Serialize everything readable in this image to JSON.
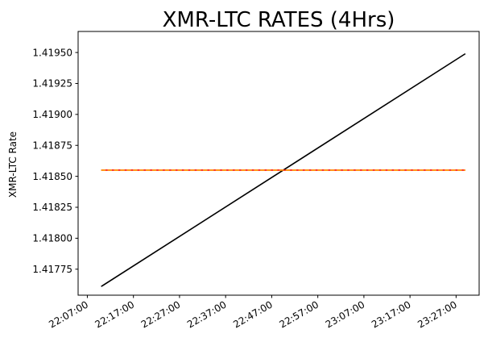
{
  "chart_data": {
    "type": "line",
    "title": "XMR-LTC RATES (4Hrs)",
    "xlabel": "",
    "ylabel": "XMR-LTC Rate",
    "x_ticks": [
      "22:07:00",
      "22:17:00",
      "22:27:00",
      "22:37:00",
      "22:47:00",
      "22:57:00",
      "23:07:00",
      "23:17:00",
      "23:27:00"
    ],
    "y_ticks": [
      "1.41775",
      "1.41800",
      "1.41825",
      "1.41850",
      "1.41875",
      "1.41900",
      "1.41925",
      "1.41950"
    ],
    "xlim": [
      "22:05:00",
      "23:32:00"
    ],
    "ylim": [
      1.41754,
      1.41967
    ],
    "grid": false,
    "series": [
      {
        "color": "#000000",
        "style": "solid",
        "x": [
          "22:10:00",
          "23:29:00"
        ],
        "values": [
          1.41761,
          1.41949
        ]
      },
      {
        "color": "#ff0000",
        "style": "solid",
        "x": [
          "22:10:00",
          "23:29:00"
        ],
        "values": [
          1.41855,
          1.41855
        ]
      },
      {
        "color": "#ffa500",
        "style": "dashed",
        "x": [
          "22:10:00",
          "23:29:00"
        ],
        "values": [
          1.41855,
          1.41855
        ]
      }
    ]
  }
}
